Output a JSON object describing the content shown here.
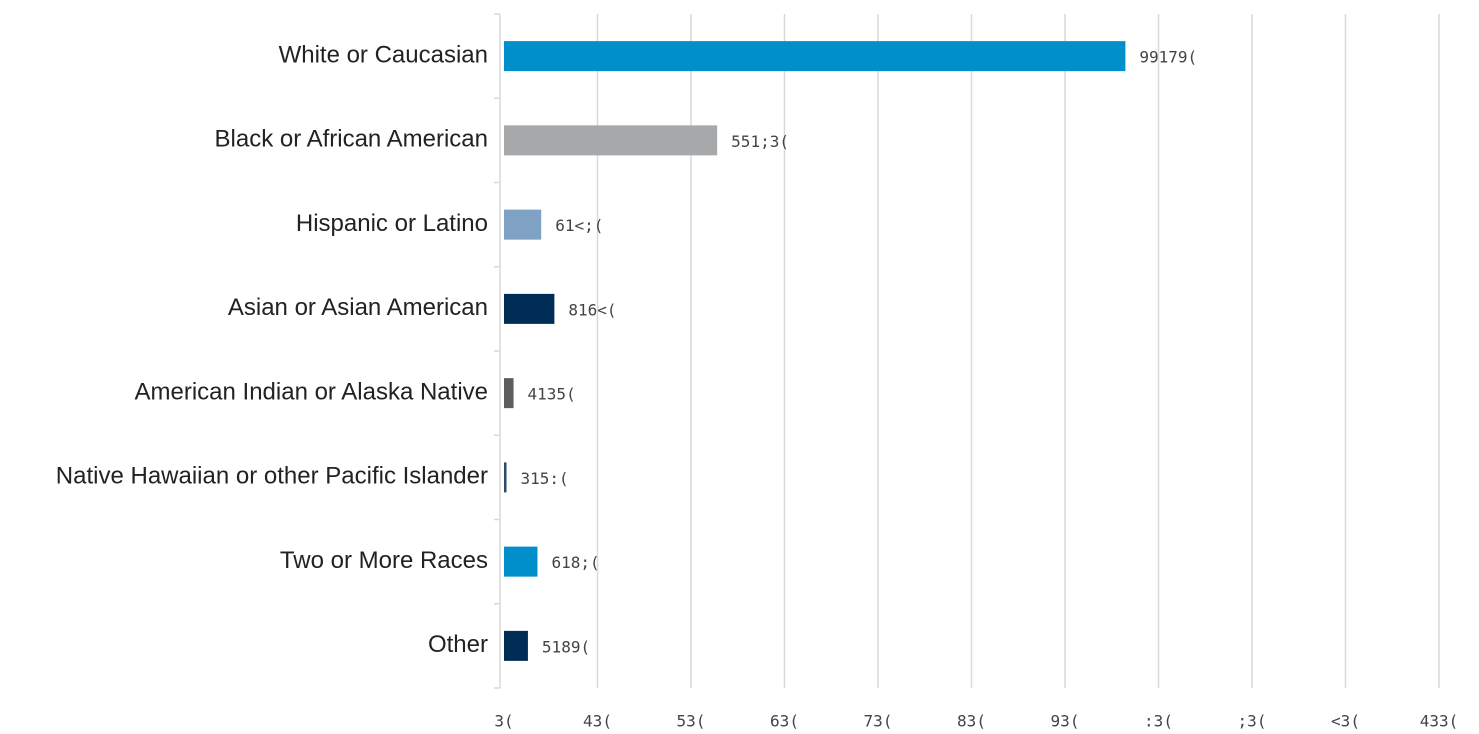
{
  "chart_data": {
    "type": "hbar",
    "categories": [
      "White or Caucasian",
      "Black or African American",
      "Hispanic or Latino",
      "Asian or Asian American",
      "American Indian or Alaska Native",
      "Native Hawaiian or other Pacific Islander",
      "Two or More Races",
      "Other"
    ],
    "values": [
      66.46,
      22.8,
      3.98,
      5.39,
      1.02,
      0.27,
      3.58,
      2.56
    ],
    "value_labels": [
      "99179(",
      "551;3(",
      "61<;(",
      "816<(",
      "4135(",
      "315:(",
      "618;(",
      "5189("
    ],
    "colors": [
      "#008fcb",
      "#a7a8aa",
      "#7fa1c3",
      "#002d56",
      "#5e5e5e",
      "#2f4a6e",
      "#008fcb",
      "#002d56"
    ],
    "xlim": [
      0,
      100
    ],
    "xticks": [
      {
        "value": 0,
        "label": "3("
      },
      {
        "value": 10,
        "label": "43("
      },
      {
        "value": 20,
        "label": "53("
      },
      {
        "value": 30,
        "label": "63("
      },
      {
        "value": 40,
        "label": "73("
      },
      {
        "value": 50,
        "label": "83("
      },
      {
        "value": 60,
        "label": "93("
      },
      {
        "value": 70,
        "label": ":3("
      },
      {
        "value": 80,
        "label": ";3("
      },
      {
        "value": 90,
        "label": "<3("
      },
      {
        "value": 100,
        "label": "433("
      }
    ],
    "grid": true
  }
}
